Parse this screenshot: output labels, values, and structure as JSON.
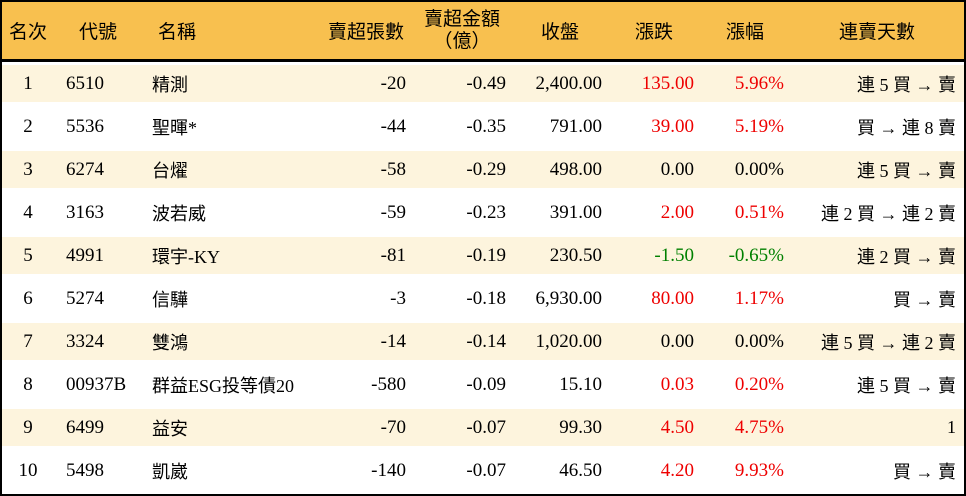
{
  "colors": {
    "header_bg": "#f8c04f",
    "row_alt_bg": "#fdf4dd",
    "up": "#ee0000",
    "down": "#008000",
    "text": "#000000"
  },
  "table": {
    "columns": [
      {
        "key": "rank",
        "label": "名次"
      },
      {
        "key": "code",
        "label": "代號"
      },
      {
        "key": "name",
        "label": "名稱"
      },
      {
        "key": "sell_volume",
        "label": "賣超張數"
      },
      {
        "key": "sell_amount",
        "label": "賣超金額",
        "label2": "（億）"
      },
      {
        "key": "close",
        "label": "收盤"
      },
      {
        "key": "change",
        "label": "漲跌"
      },
      {
        "key": "change_pct",
        "label": "漲幅"
      },
      {
        "key": "streak",
        "label": "連賣天數"
      }
    ],
    "rows": [
      {
        "rank": "1",
        "code": "6510",
        "name": "精測",
        "sell_volume": "-20",
        "sell_amount": "-0.49",
        "close": "2,400.00",
        "change": "135.00",
        "change_pct": "5.96%",
        "streak": "連 5 買 → 賣",
        "trend": "up"
      },
      {
        "rank": "2",
        "code": "5536",
        "name": "聖暉*",
        "sell_volume": "-44",
        "sell_amount": "-0.35",
        "close": "791.00",
        "change": "39.00",
        "change_pct": "5.19%",
        "streak": "買 → 連 8 賣",
        "trend": "up"
      },
      {
        "rank": "3",
        "code": "6274",
        "name": "台燿",
        "sell_volume": "-58",
        "sell_amount": "-0.29",
        "close": "498.00",
        "change": "0.00",
        "change_pct": "0.00%",
        "streak": "連 5 買 → 賣",
        "trend": "flat"
      },
      {
        "rank": "4",
        "code": "3163",
        "name": "波若威",
        "sell_volume": "-59",
        "sell_amount": "-0.23",
        "close": "391.00",
        "change": "2.00",
        "change_pct": "0.51%",
        "streak": "連 2 買 → 連 2 賣",
        "trend": "up"
      },
      {
        "rank": "5",
        "code": "4991",
        "name": "環宇-KY",
        "sell_volume": "-81",
        "sell_amount": "-0.19",
        "close": "230.50",
        "change": "-1.50",
        "change_pct": "-0.65%",
        "streak": "連 2 買 → 賣",
        "trend": "down"
      },
      {
        "rank": "6",
        "code": "5274",
        "name": "信驊",
        "sell_volume": "-3",
        "sell_amount": "-0.18",
        "close": "6,930.00",
        "change": "80.00",
        "change_pct": "1.17%",
        "streak": "買 → 賣",
        "trend": "up"
      },
      {
        "rank": "7",
        "code": "3324",
        "name": "雙鴻",
        "sell_volume": "-14",
        "sell_amount": "-0.14",
        "close": "1,020.00",
        "change": "0.00",
        "change_pct": "0.00%",
        "streak": "連 5 買 → 連 2 賣",
        "trend": "flat"
      },
      {
        "rank": "8",
        "code": "00937B",
        "name": "群益ESG投等債20",
        "sell_volume": "-580",
        "sell_amount": "-0.09",
        "close": "15.10",
        "change": "0.03",
        "change_pct": "0.20%",
        "streak": "連 5 買 → 賣",
        "trend": "up"
      },
      {
        "rank": "9",
        "code": "6499",
        "name": "益安",
        "sell_volume": "-70",
        "sell_amount": "-0.07",
        "close": "99.30",
        "change": "4.50",
        "change_pct": "4.75%",
        "streak": "1",
        "trend": "up"
      },
      {
        "rank": "10",
        "code": "5498",
        "name": "凱崴",
        "sell_volume": "-140",
        "sell_amount": "-0.07",
        "close": "46.50",
        "change": "4.20",
        "change_pct": "9.93%",
        "streak": "買 → 賣",
        "trend": "up"
      }
    ]
  }
}
